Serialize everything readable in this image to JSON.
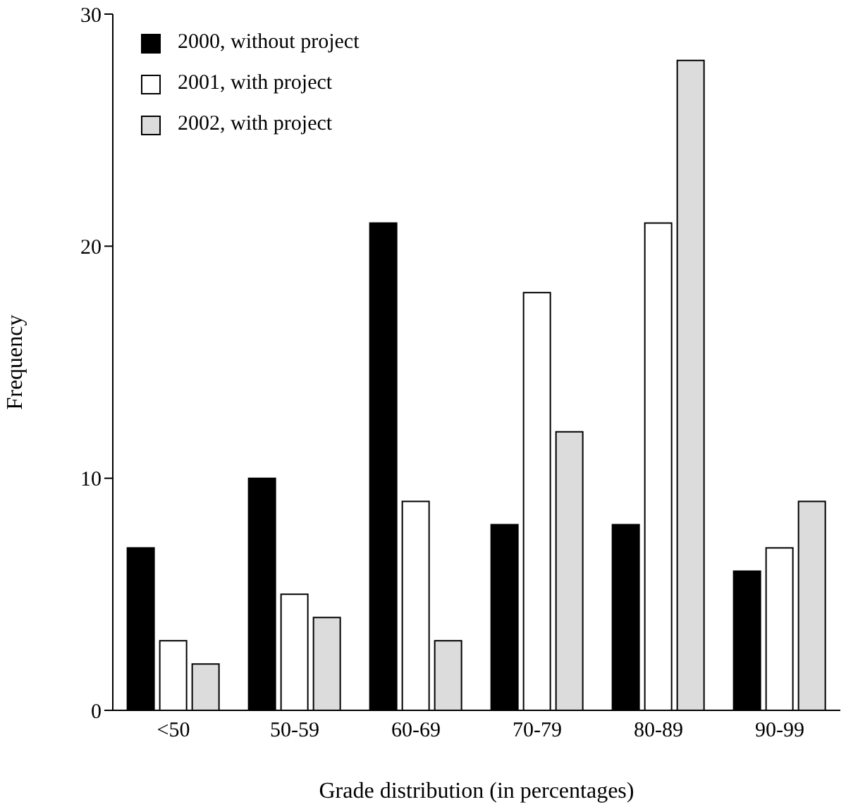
{
  "chart_data": {
    "type": "bar",
    "xlabel": "Grade distribution (in percentages)",
    "ylabel": "Frequency",
    "categories": [
      "<50",
      "50-59",
      "60-69",
      "70-79",
      "80-89",
      "90-99"
    ],
    "series": [
      {
        "name": "2000, without project",
        "color": "#000000",
        "values": [
          7,
          10,
          21,
          8,
          8,
          6
        ]
      },
      {
        "name": "2001, with project",
        "color": "#ffffff",
        "values": [
          3,
          5,
          9,
          18,
          21,
          7
        ]
      },
      {
        "name": "2002, with project",
        "color": "#dcdcdc",
        "values": [
          2,
          4,
          3,
          12,
          28,
          9
        ]
      }
    ],
    "ylim": [
      0,
      30
    ],
    "yticks": [
      0,
      10,
      20,
      30
    ],
    "grid": false,
    "legend": "top left"
  }
}
